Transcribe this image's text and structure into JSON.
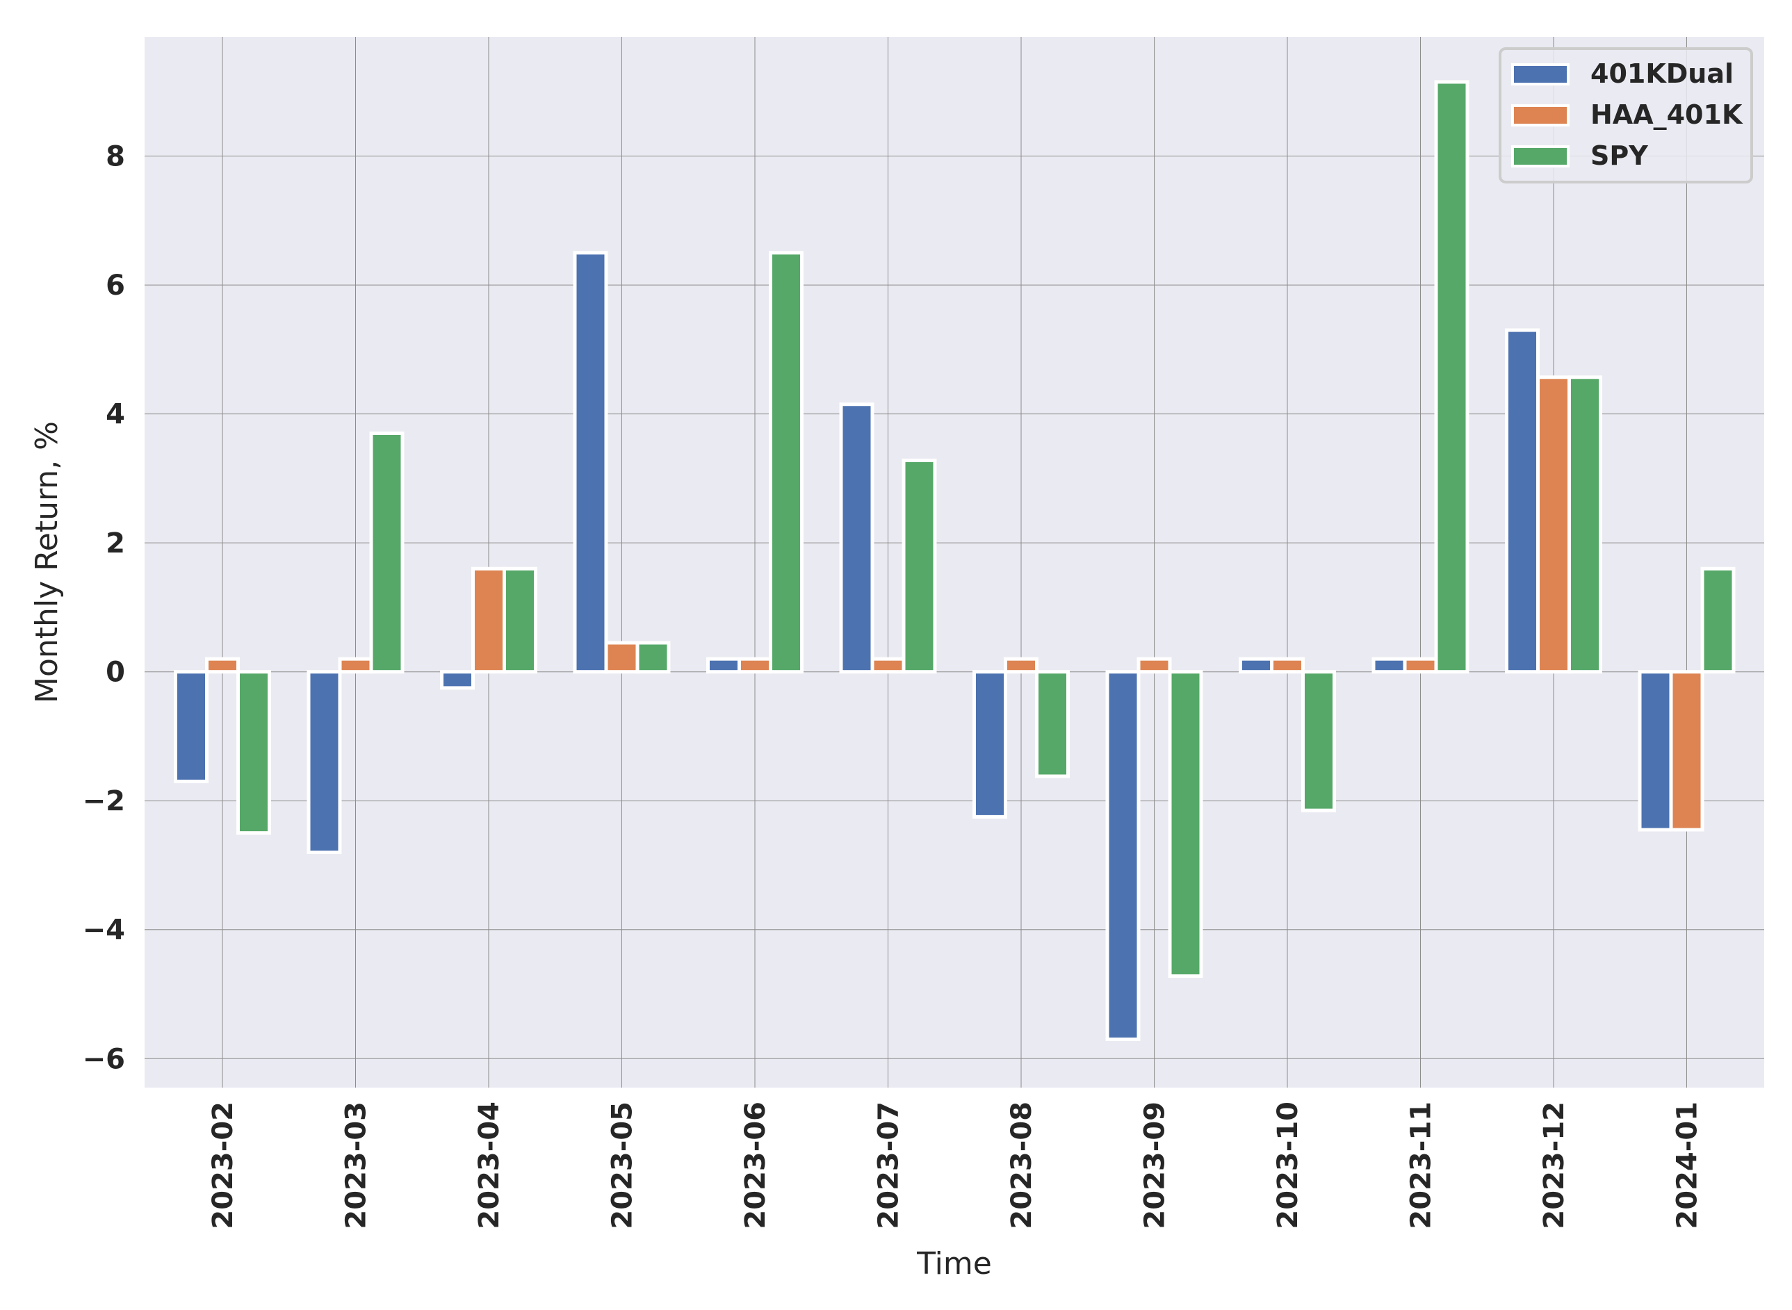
{
  "chart_data": {
    "type": "bar",
    "title": "",
    "xlabel": "Time",
    "ylabel": "Monthly Return, %",
    "categories": [
      "2023-02",
      "2023-03",
      "2023-04",
      "2023-05",
      "2023-06",
      "2023-07",
      "2023-08",
      "2023-09",
      "2023-10",
      "2023-11",
      "2023-12",
      "2024-01"
    ],
    "yticks": [
      -6,
      -4,
      -2,
      0,
      2,
      4,
      6,
      8
    ],
    "ylim": [
      -6.45,
      9.85
    ],
    "grid": true,
    "legend_position": "top-right",
    "series": [
      {
        "name": "401KDual",
        "color": "#4c72b0",
        "values": [
          -1.7,
          -2.8,
          -0.25,
          6.5,
          0.2,
          4.15,
          -2.25,
          -5.7,
          0.2,
          0.2,
          5.3,
          -2.45
        ]
      },
      {
        "name": "HAA_401K",
        "color": "#dd8452",
        "values": [
          0.2,
          0.2,
          1.6,
          0.45,
          0.2,
          0.2,
          0.2,
          0.2,
          0.2,
          0.2,
          4.57,
          -2.45
        ]
      },
      {
        "name": "SPY",
        "color": "#55a868",
        "values": [
          -2.5,
          3.7,
          1.6,
          0.45,
          6.5,
          3.28,
          -1.62,
          -4.72,
          -2.15,
          9.15,
          4.57,
          1.6
        ]
      }
    ]
  }
}
